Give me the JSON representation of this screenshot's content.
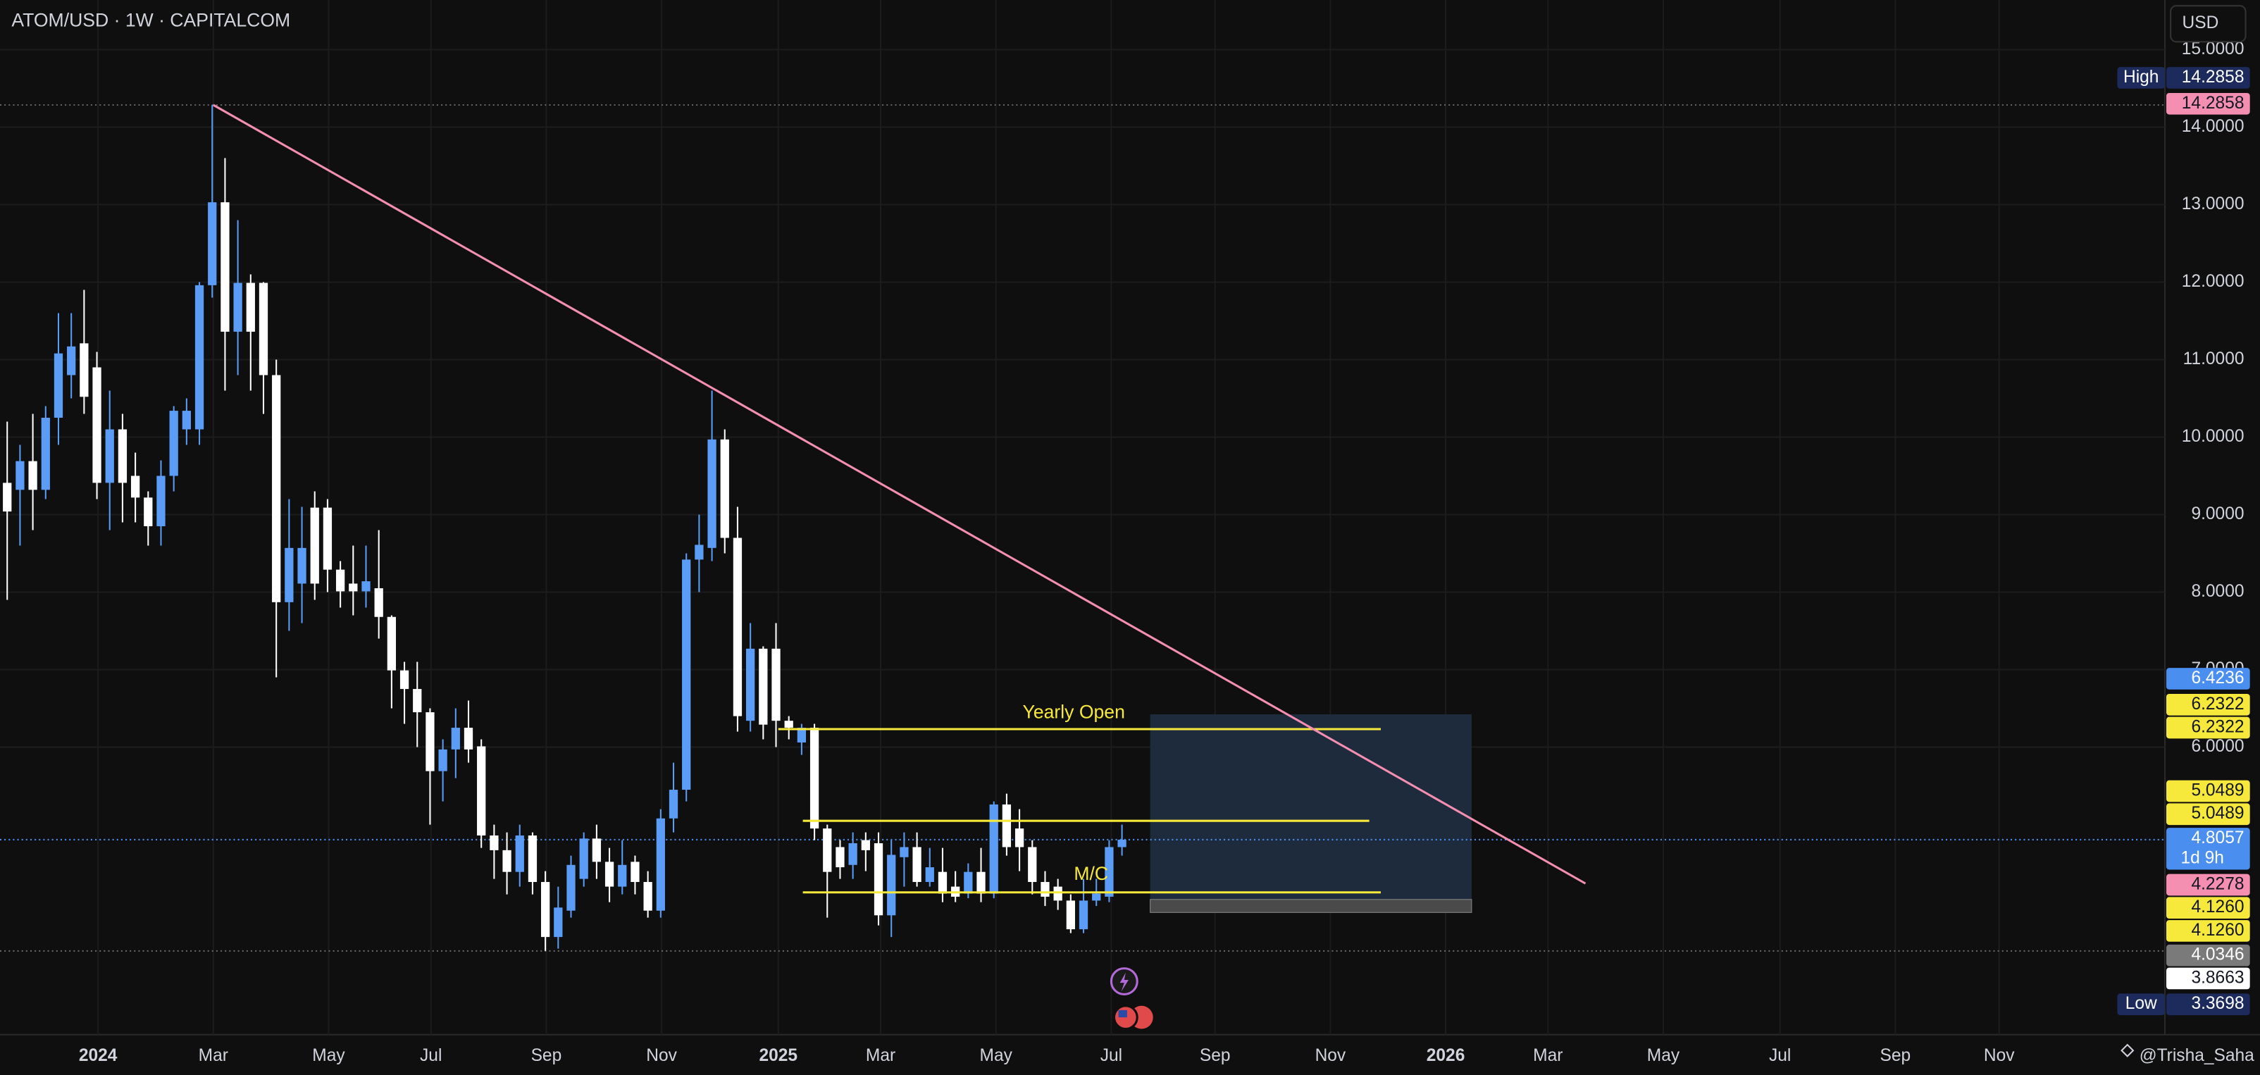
{
  "header": {
    "symbol": "ATOM/USD · 1W · CAPITALCOM",
    "currency_button": "USD"
  },
  "watermark": "@Trisha_Saha",
  "chart_data": {
    "type": "candlestick",
    "up_color": "#5b9cf6",
    "down_color": "#ffffff",
    "open": [
      9.41,
      9.32,
      9.69,
      9.32,
      10.25,
      10.8,
      11.21,
      10.9,
      9.41,
      10.1,
      9.5,
      9.22,
      8.85,
      9.5,
      10.1,
      10.1,
      11.96,
      13.03,
      11.36,
      11.99,
      11.99,
      10.8,
      7.87,
      8.11,
      9.09,
      9.09,
      8.29,
      8.11,
      8.01,
      8.05,
      7.68,
      6.99,
      6.75,
      6.45,
      5.69,
      5.97,
      6.25,
      6.01,
      4.86,
      4.67,
      4.39,
      4.86,
      4.26,
      3.55,
      3.89,
      4.3,
      4.82,
      4.52,
      4.2,
      4.52,
      4.26,
      3.89,
      5.08,
      5.45,
      8.42,
      8.57,
      9.97,
      8.7,
      6.34,
      7.27,
      7.27,
      6.34,
      6.06,
      6.25,
      4.95,
      4.71,
      4.48,
      4.8,
      4.76,
      3.83,
      4.58,
      4.71,
      4.26,
      4.39,
      4.2,
      4.11,
      4.39,
      4.11,
      5.26,
      4.95,
      4.71,
      4.26,
      4.2,
      4.02,
      3.65,
      4.02,
      4.07,
      4.71
    ],
    "high": [
      10.2,
      9.9,
      10.3,
      10.4,
      11.6,
      11.6,
      11.9,
      11.1,
      10.6,
      10.3,
      9.8,
      9.3,
      9.7,
      10.4,
      10.5,
      12.0,
      14.2858,
      13.6,
      12.8,
      12.1,
      12.0,
      11.0,
      9.2,
      9.1,
      9.3,
      9.2,
      8.4,
      8.6,
      8.6,
      8.8,
      7.7,
      7.1,
      7.1,
      6.5,
      6.1,
      6.5,
      6.6,
      6.1,
      5.0,
      4.9,
      5.0,
      4.9,
      4.4,
      4.2,
      4.6,
      4.9,
      5.0,
      4.7,
      4.8,
      4.6,
      4.4,
      5.2,
      5.8,
      8.5,
      9.0,
      10.6,
      10.1,
      9.1,
      7.6,
      7.3,
      7.6,
      6.4,
      6.3,
      6.3,
      5.0,
      4.8,
      4.9,
      4.9,
      4.9,
      4.8,
      4.9,
      4.9,
      4.7,
      4.7,
      4.4,
      4.5,
      4.7,
      5.3,
      5.4,
      5.2,
      4.8,
      4.4,
      4.3,
      4.1,
      4.3,
      4.3,
      4.8,
      5.0
    ],
    "low": [
      7.9,
      8.6,
      8.8,
      9.2,
      9.9,
      10.5,
      10.3,
      9.2,
      8.8,
      8.9,
      8.9,
      8.6,
      8.6,
      9.3,
      9.9,
      9.9,
      11.8,
      10.6,
      10.8,
      10.6,
      10.3,
      6.9,
      7.5,
      7.6,
      7.9,
      8.0,
      7.8,
      7.7,
      7.8,
      7.4,
      6.5,
      6.3,
      6.0,
      5.0,
      5.3,
      5.6,
      5.8,
      4.7,
      4.3,
      4.1,
      4.2,
      4.1,
      3.3698,
      3.4,
      3.8,
      4.2,
      4.3,
      4.0,
      4.1,
      4.1,
      3.8,
      3.8,
      4.9,
      5.3,
      8.0,
      8.4,
      8.5,
      6.2,
      6.2,
      6.1,
      6.0,
      6.1,
      5.9,
      4.8,
      3.8,
      4.3,
      4.3,
      4.4,
      3.7,
      3.55,
      4.2,
      4.2,
      4.2,
      4.0,
      4.0,
      4.05,
      4.0,
      4.05,
      4.6,
      4.4,
      4.1,
      3.95,
      3.9,
      3.6,
      3.6,
      3.95,
      4.0,
      4.6
    ],
    "close": [
      9.04,
      9.69,
      9.32,
      10.25,
      11.08,
      11.17,
      10.52,
      9.41,
      10.1,
      9.41,
      9.22,
      8.85,
      9.5,
      10.34,
      10.34,
      11.96,
      13.03,
      11.36,
      11.99,
      11.36,
      10.8,
      7.87,
      8.57,
      8.57,
      8.11,
      8.29,
      8.01,
      8.01,
      8.14,
      7.68,
      6.99,
      6.75,
      6.45,
      5.69,
      5.97,
      6.25,
      5.97,
      4.86,
      4.67,
      4.39,
      4.86,
      4.26,
      3.55,
      3.93,
      4.48,
      4.82,
      4.52,
      4.2,
      4.48,
      4.26,
      3.89,
      5.08,
      5.45,
      8.42,
      8.61,
      9.97,
      8.7,
      6.4,
      7.27,
      6.29,
      6.34,
      6.25,
      6.25,
      4.95,
      4.39,
      4.45,
      4.76,
      4.67,
      3.83,
      4.61,
      4.71,
      4.26,
      4.45,
      4.11,
      4.07,
      4.39,
      4.11,
      5.26,
      4.71,
      4.71,
      4.26,
      4.07,
      4.02,
      3.65,
      4.02,
      4.11,
      4.71,
      4.8057
    ],
    "ylim": [
      2.29,
      15.64
    ],
    "yticks": [
      {
        "value": 6,
        "label": "6.0000"
      },
      {
        "value": 7,
        "label": "7.0000"
      },
      {
        "value": 8,
        "label": "8.0000"
      },
      {
        "value": 9,
        "label": "9.0000"
      },
      {
        "value": 10,
        "label": "10.0000"
      },
      {
        "value": 11,
        "label": "11.0000"
      },
      {
        "value": 12,
        "label": "12.0000"
      },
      {
        "value": 13,
        "label": "13.0000"
      },
      {
        "value": 14,
        "label": "14.0000"
      },
      {
        "value": 15,
        "label": "15.0000"
      }
    ],
    "xticks": [
      "2024",
      "Mar",
      "May",
      "Jul",
      "Sep",
      "Nov",
      "2025",
      "Mar",
      "May",
      "Jul",
      "Sep",
      "Nov",
      "2026",
      "Mar",
      "May",
      "Jul",
      "Sep",
      "Nov"
    ],
    "grid": true,
    "trendline": {
      "values": [
        14.2858,
        4.24
      ],
      "color": "#f48fb1"
    },
    "levels": [
      {
        "name": "Yearly Open",
        "value": 6.2322
      },
      {
        "value": 5.0489
      },
      {
        "name": "M/C",
        "value": 4.126
      }
    ],
    "level_color": "#f7e93b",
    "position": {
      "target": 6.4236,
      "entry": 4.0346,
      "stop": 3.8663,
      "profit_color": "#1e2b3d",
      "loss_color": "#4a4a4a"
    },
    "badges": [
      {
        "tag": "High",
        "value": 14.2858,
        "color": "#1c2a5c"
      },
      {
        "value": 14.2858,
        "color": "#f48fb1"
      },
      {
        "value": 6.4236,
        "color": "#4a8ef0"
      },
      {
        "value": 6.2322,
        "color": "#f7e93b"
      },
      {
        "value": 6.2322,
        "color": "#f7e93b"
      },
      {
        "value": 5.0489,
        "color": "#f7e93b"
      },
      {
        "value": 5.0489,
        "color": "#f7e93b"
      },
      {
        "value": 4.8057,
        "sub": "1d 9h",
        "color": "#4a8ef0"
      },
      {
        "value": 4.2278,
        "color": "#f48fb1"
      },
      {
        "value": 4.126,
        "label": "4.1260",
        "color": "#f7e93b"
      },
      {
        "value": 4.126,
        "label": "4.1260",
        "color": "#f7e93b"
      },
      {
        "value": 4.0346,
        "color": "#7a7a7a"
      },
      {
        "value": 3.8663,
        "color": "#ffffff"
      },
      {
        "tag": "Low",
        "value": 3.3698,
        "color": "#1c2a5c"
      }
    ]
  }
}
